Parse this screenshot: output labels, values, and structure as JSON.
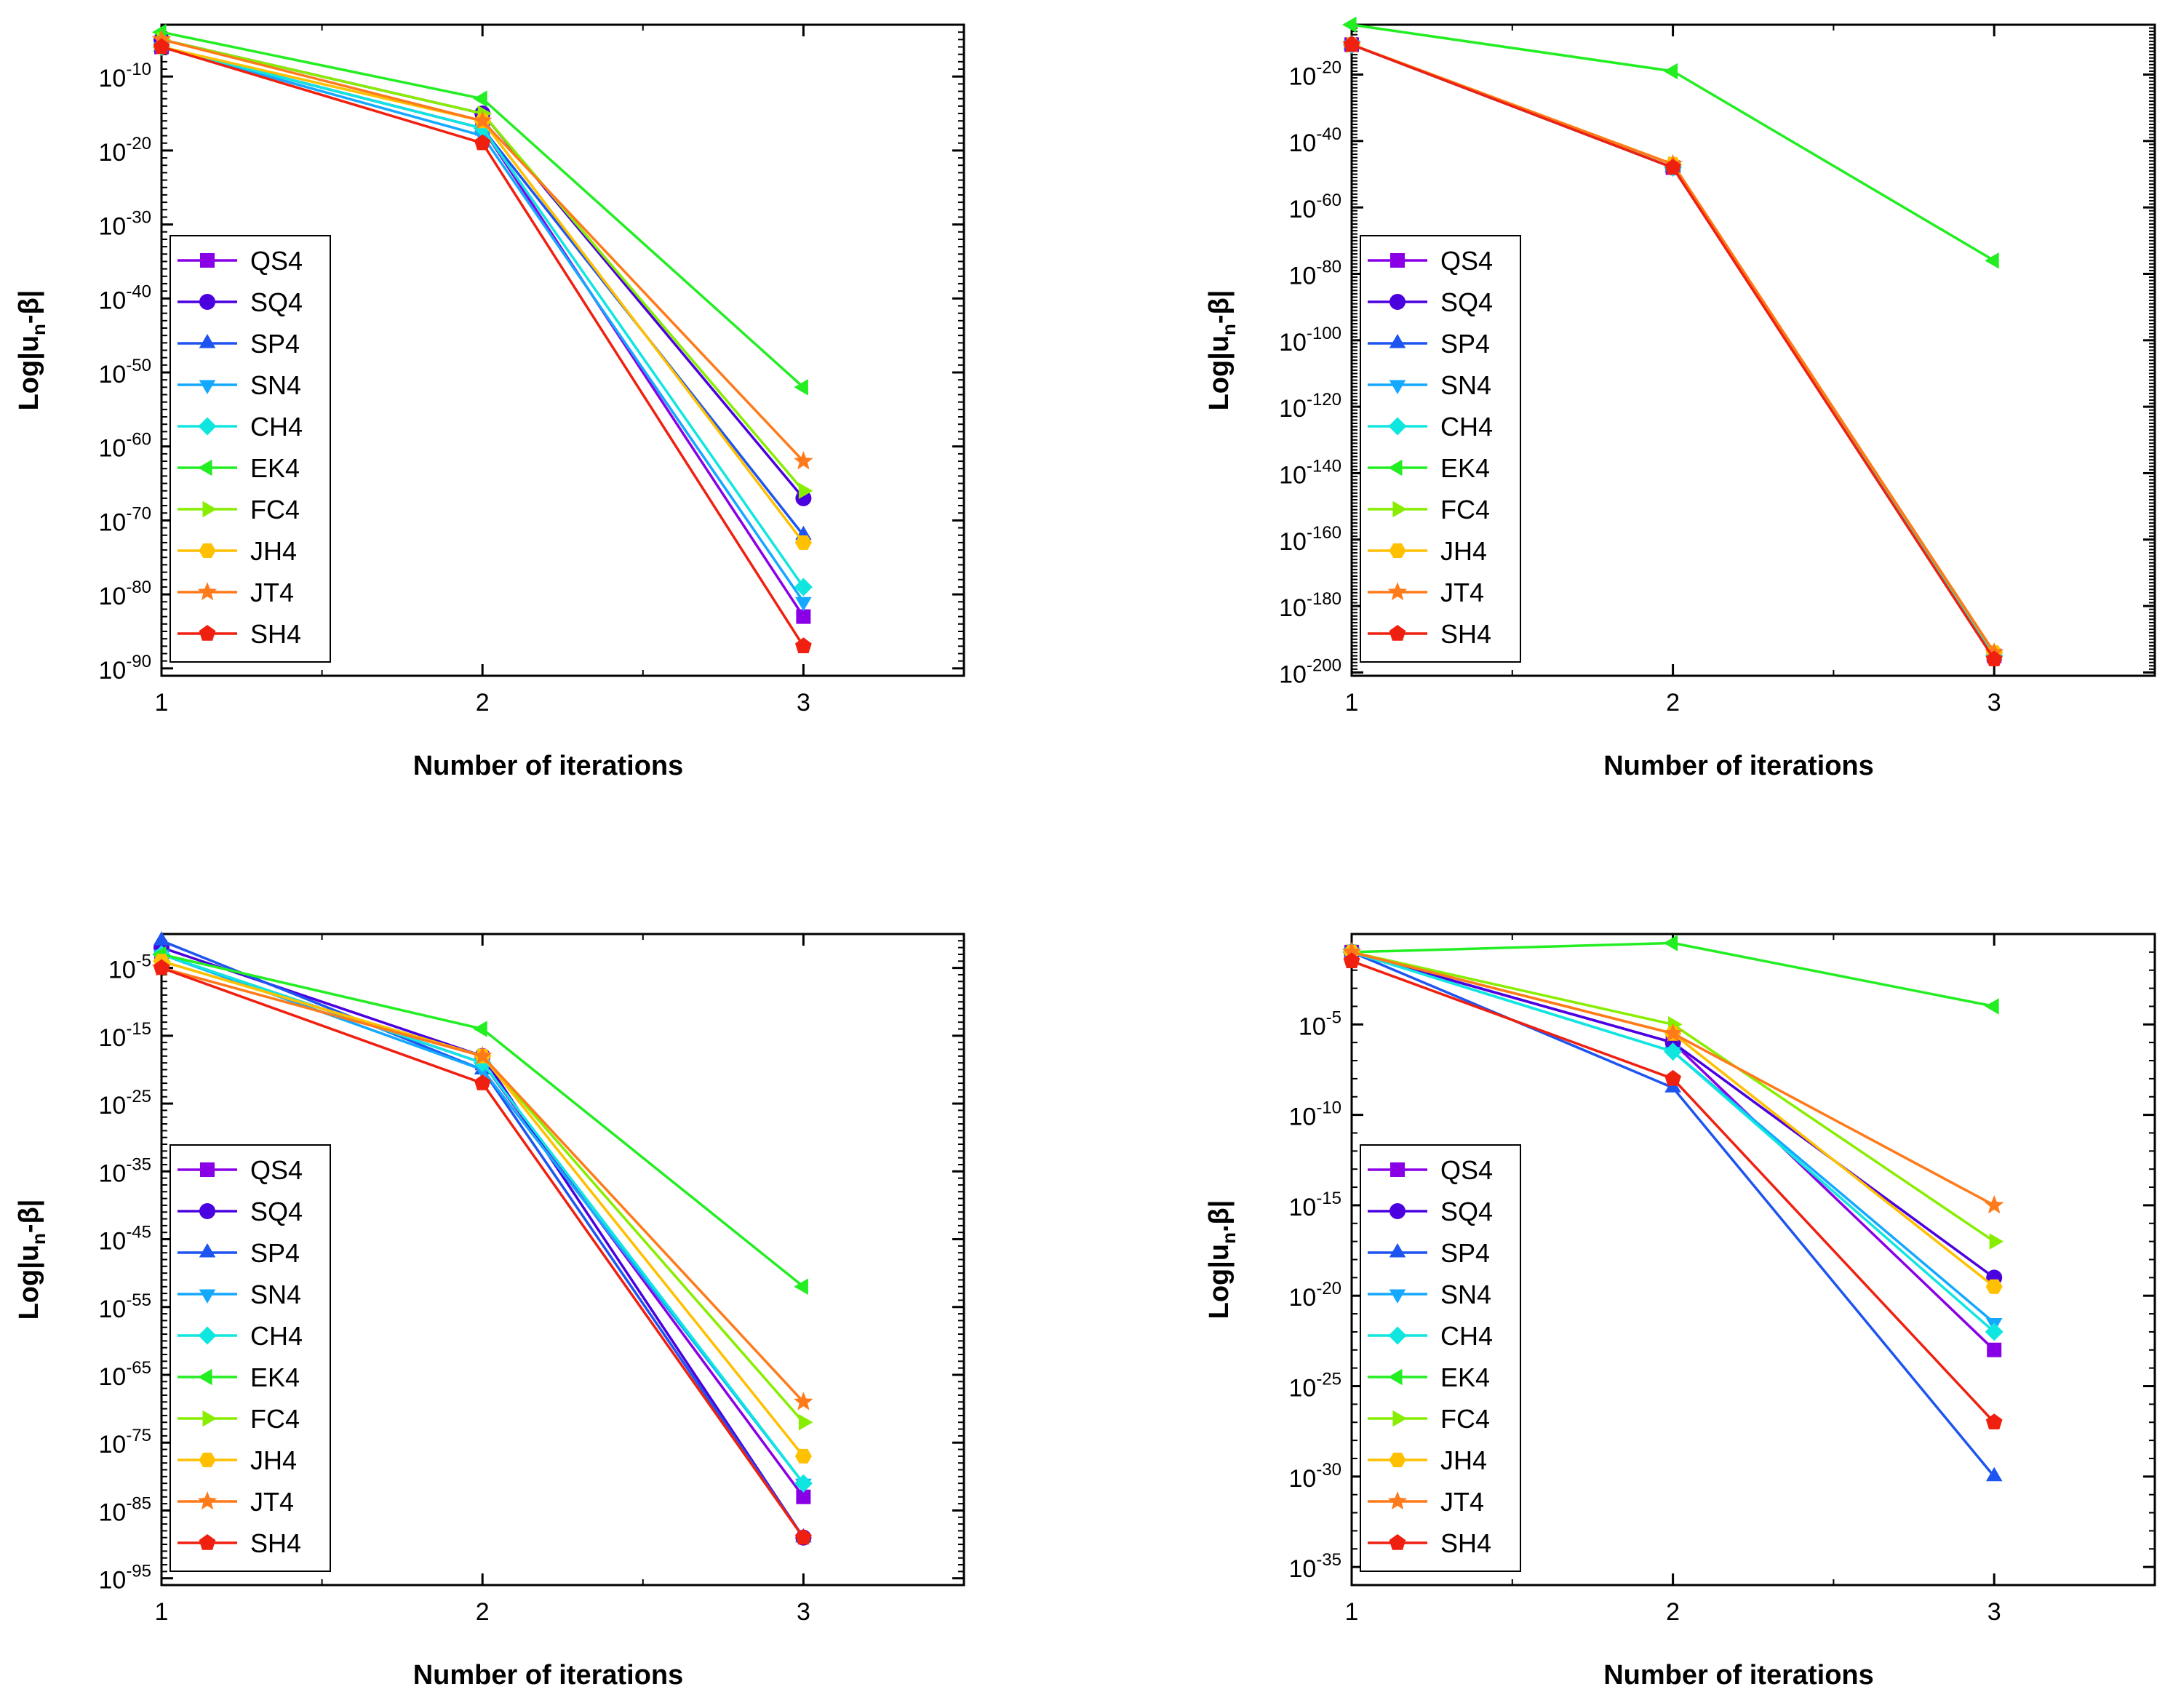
{
  "chart_data": [
    {
      "type": "line",
      "title": "",
      "xlabel": "Number of iterations",
      "ylabel": "Log|u_n-β|",
      "ylabel_parts": {
        "main": "Log|u",
        "sub": "n",
        "tail": "-β|"
      },
      "yscale": "log",
      "x": [
        1,
        2,
        3
      ],
      "xlim": [
        1,
        3.5
      ],
      "xticks": [
        "1",
        "2",
        "3"
      ],
      "ylim_exp": [
        -91,
        -3
      ],
      "yticks_exp": [
        "-10",
        "-20",
        "-30",
        "-40",
        "-50",
        "-60",
        "-70",
        "-80",
        "-90"
      ],
      "legend": "left-middle",
      "series": [
        {
          "name": "QS4",
          "color": "#8A00E6",
          "marker": "square",
          "log10_values": [
            -6,
            -17,
            -83
          ]
        },
        {
          "name": "SQ4",
          "color": "#4B00E0",
          "marker": "circle",
          "log10_values": [
            -5,
            -15,
            -67
          ]
        },
        {
          "name": "SP4",
          "color": "#1E55F0",
          "marker": "triangle-up",
          "log10_values": [
            -6,
            -17,
            -72
          ]
        },
        {
          "name": "SN4",
          "color": "#14A8FF",
          "marker": "triangle-down",
          "log10_values": [
            -6,
            -18,
            -81
          ]
        },
        {
          "name": "CH4",
          "color": "#10E6E0",
          "marker": "diamond",
          "log10_values": [
            -6,
            -17,
            -79
          ]
        },
        {
          "name": "EK4",
          "color": "#22EE22",
          "marker": "triangle-left",
          "log10_values": [
            -4,
            -13,
            -52
          ]
        },
        {
          "name": "FC4",
          "color": "#88EE00",
          "marker": "triangle-right",
          "log10_values": [
            -5,
            -15,
            -66
          ]
        },
        {
          "name": "JH4",
          "color": "#FFC000",
          "marker": "hexagon",
          "log10_values": [
            -6,
            -16,
            -73
          ]
        },
        {
          "name": "JT4",
          "color": "#FF7A1A",
          "marker": "star",
          "log10_values": [
            -5,
            -16,
            -62
          ]
        },
        {
          "name": "SH4",
          "color": "#F02010",
          "marker": "pentagon",
          "log10_values": [
            -6,
            -19,
            -87
          ]
        }
      ]
    },
    {
      "type": "line",
      "title": "",
      "xlabel": "Number of iterations",
      "ylabel": "Log|u_n-β|",
      "ylabel_parts": {
        "main": "Log|u",
        "sub": "n",
        "tail": "-β|"
      },
      "yscale": "log",
      "x": [
        1,
        2,
        3
      ],
      "xlim": [
        1,
        3.5
      ],
      "xticks": [
        "1",
        "2",
        "3"
      ],
      "ylim_exp": [
        -201,
        -5
      ],
      "yticks_exp": [
        "-20",
        "-40",
        "-60",
        "-80",
        "-100",
        "-120",
        "-140",
        "-160",
        "-180",
        "-200"
      ],
      "legend": "left-middle",
      "series": [
        {
          "name": "QS4",
          "color": "#8A00E6",
          "marker": "square",
          "log10_values": [
            -11,
            -48,
            -195
          ]
        },
        {
          "name": "SQ4",
          "color": "#4B00E0",
          "marker": "circle",
          "log10_values": [
            -11,
            -48,
            -195
          ]
        },
        {
          "name": "SP4",
          "color": "#1E55F0",
          "marker": "triangle-up",
          "log10_values": [
            -11,
            -48,
            -195
          ]
        },
        {
          "name": "SN4",
          "color": "#14A8FF",
          "marker": "triangle-down",
          "log10_values": [
            -11,
            -48,
            -195
          ]
        },
        {
          "name": "CH4",
          "color": "#10E6E0",
          "marker": "diamond",
          "log10_values": [
            -11,
            -48,
            -195
          ]
        },
        {
          "name": "EK4",
          "color": "#22EE22",
          "marker": "triangle-left",
          "log10_values": [
            -5,
            -19,
            -76
          ]
        },
        {
          "name": "FC4",
          "color": "#88EE00",
          "marker": "triangle-right",
          "log10_values": [
            -11,
            -47,
            -194
          ]
        },
        {
          "name": "JH4",
          "color": "#FFC000",
          "marker": "hexagon",
          "log10_values": [
            -11,
            -47,
            -194
          ]
        },
        {
          "name": "JT4",
          "color": "#FF7A1A",
          "marker": "star",
          "log10_values": [
            -11,
            -47,
            -194
          ]
        },
        {
          "name": "SH4",
          "color": "#F02010",
          "marker": "pentagon",
          "log10_values": [
            -11,
            -48,
            -196
          ]
        }
      ]
    },
    {
      "type": "line",
      "title": "",
      "xlabel": "Number of iterations",
      "ylabel": "Log|u_n-β|",
      "ylabel_parts": {
        "main": "Log|u",
        "sub": "n",
        "tail": "-β|"
      },
      "yscale": "log",
      "x": [
        1,
        2,
        3
      ],
      "xlim": [
        1,
        3.5
      ],
      "xticks": [
        "1",
        "2",
        "3"
      ],
      "ylim_exp": [
        -96,
        0
      ],
      "yticks_exp": [
        "-5",
        "-15",
        "-25",
        "-35",
        "-45",
        "-55",
        "-65",
        "-75",
        "-85",
        "-95"
      ],
      "legend": "left-middle",
      "series": [
        {
          "name": "QS4",
          "color": "#8A00E6",
          "marker": "square",
          "log10_values": [
            -3,
            -19,
            -83
          ]
        },
        {
          "name": "SQ4",
          "color": "#4B00E0",
          "marker": "circle",
          "log10_values": [
            -2,
            -18,
            -89
          ]
        },
        {
          "name": "SP4",
          "color": "#1E55F0",
          "marker": "triangle-up",
          "log10_values": [
            -1,
            -20,
            -89
          ]
        },
        {
          "name": "SN4",
          "color": "#14A8FF",
          "marker": "triangle-down",
          "log10_values": [
            -3,
            -20,
            -81
          ]
        },
        {
          "name": "CH4",
          "color": "#10E6E0",
          "marker": "diamond",
          "log10_values": [
            -3,
            -19,
            -81
          ]
        },
        {
          "name": "EK4",
          "color": "#22EE22",
          "marker": "triangle-left",
          "log10_values": [
            -3,
            -14,
            -52
          ]
        },
        {
          "name": "FC4",
          "color": "#88EE00",
          "marker": "triangle-right",
          "log10_values": [
            -4,
            -18,
            -72
          ]
        },
        {
          "name": "JH4",
          "color": "#FFC000",
          "marker": "hexagon",
          "log10_values": [
            -4,
            -18,
            -77
          ]
        },
        {
          "name": "JT4",
          "color": "#FF7A1A",
          "marker": "star",
          "log10_values": [
            -5,
            -18,
            -69
          ]
        },
        {
          "name": "SH4",
          "color": "#F02010",
          "marker": "pentagon",
          "log10_values": [
            -5,
            -22,
            -89
          ]
        }
      ]
    },
    {
      "type": "line",
      "title": "",
      "xlabel": "Number of iterations",
      "ylabel": "Log|u_n.β|",
      "ylabel_parts": {
        "main": "Log|u",
        "sub": "n",
        "tail": ".β|"
      },
      "yscale": "log",
      "x": [
        1,
        2,
        3
      ],
      "xlim": [
        1,
        3.5
      ],
      "xticks": [
        "1",
        "2",
        "3"
      ],
      "ylim_exp": [
        -36,
        0
      ],
      "yticks_exp": [
        "-5",
        "-10",
        "-15",
        "-20",
        "-25",
        "-30",
        "-35"
      ],
      "legend": "left-middle",
      "series": [
        {
          "name": "QS4",
          "color": "#8A00E6",
          "marker": "square",
          "log10_values": [
            -1,
            -6,
            -23
          ]
        },
        {
          "name": "SQ4",
          "color": "#4B00E0",
          "marker": "circle",
          "log10_values": [
            -1,
            -6,
            -19
          ]
        },
        {
          "name": "SP4",
          "color": "#1E55F0",
          "marker": "triangle-up",
          "log10_values": [
            -1,
            -8.5,
            -30
          ]
        },
        {
          "name": "SN4",
          "color": "#14A8FF",
          "marker": "triangle-down",
          "log10_values": [
            -1,
            -6.5,
            -21.5
          ]
        },
        {
          "name": "CH4",
          "color": "#10E6E0",
          "marker": "diamond",
          "log10_values": [
            -1,
            -6.5,
            -22
          ]
        },
        {
          "name": "EK4",
          "color": "#22EE22",
          "marker": "triangle-left",
          "log10_values": [
            -1,
            -0.5,
            -4
          ]
        },
        {
          "name": "FC4",
          "color": "#88EE00",
          "marker": "triangle-right",
          "log10_values": [
            -1,
            -5,
            -17
          ]
        },
        {
          "name": "JH4",
          "color": "#FFC000",
          "marker": "hexagon",
          "log10_values": [
            -1,
            -5.5,
            -19.5
          ]
        },
        {
          "name": "JT4",
          "color": "#FF7A1A",
          "marker": "star",
          "log10_values": [
            -1,
            -5.5,
            -15
          ]
        },
        {
          "name": "SH4",
          "color": "#F02010",
          "marker": "pentagon",
          "log10_values": [
            -1.5,
            -8,
            -27
          ]
        }
      ]
    }
  ]
}
